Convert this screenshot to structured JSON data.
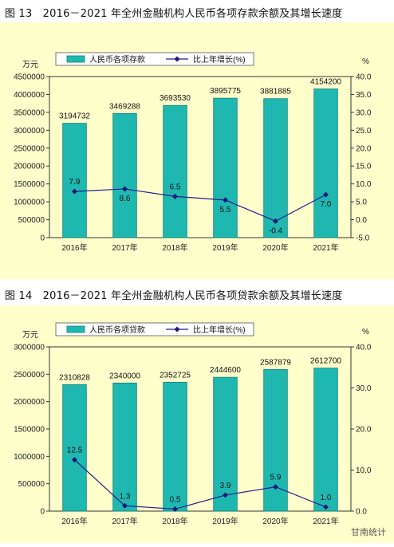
{
  "colors": {
    "background": "#FFFFCC",
    "bar_fill": "#1FB8B0",
    "bar_edge": "#0E7F7A",
    "line": "#1F1F8F",
    "marker": "#1A1A7A"
  },
  "figure1": {
    "caption": "图 13　2016－2021 年全州金融机构人民币各项存款余额及其增长速度"
  },
  "figure2": {
    "caption": "图 14　2016－2021 年全州金融机构人民币各项贷款余额及其增长速度"
  },
  "watermark": "甘南统计",
  "chart_data": [
    {
      "type": "bar",
      "categories": [
        "2016年",
        "2017年",
        "2018年",
        "2019年",
        "2020年",
        "2021年"
      ],
      "series": [
        {
          "name": "人民币各项存款",
          "type": "bar",
          "axis": "left",
          "values": [
            3194732,
            3469288,
            3693530,
            3895775,
            3881885,
            4154200
          ]
        },
        {
          "name": "比上年增长(%)",
          "type": "line",
          "axis": "right",
          "values": [
            7.9,
            8.6,
            6.5,
            5.5,
            -0.4,
            7.0
          ]
        }
      ],
      "bar_labels": [
        "3194732",
        "3469288",
        "3693530",
        "3895775",
        "3881885",
        "4154200"
      ],
      "line_labels": [
        "7.9",
        "8.6",
        "6.5",
        "5.5",
        "-0.4",
        "7.0"
      ],
      "left_unit": "万元",
      "right_unit": "%",
      "left_ylim": [
        0,
        4500000
      ],
      "left_ticks": [
        "0",
        "500000",
        "1000000",
        "1500000",
        "2000000",
        "2500000",
        "3000000",
        "3500000",
        "4000000",
        "4500000"
      ],
      "right_ylim": [
        -5,
        40
      ],
      "right_ticks": [
        "-5.0",
        "0.0",
        "5.0",
        "10.0",
        "15.0",
        "20.0",
        "25.0",
        "30.0",
        "35.0",
        "40.0"
      ],
      "legend_position": "top-left",
      "grid": false
    },
    {
      "type": "bar",
      "categories": [
        "2016年",
        "2017年",
        "2018年",
        "2019年",
        "2020年",
        "2021年"
      ],
      "series": [
        {
          "name": "人民币各项贷款",
          "type": "bar",
          "axis": "left",
          "values": [
            2310828,
            2340000,
            2352725,
            2444600,
            2587879,
            2612700
          ]
        },
        {
          "name": "比上年增长(%)",
          "type": "line",
          "axis": "right",
          "values": [
            12.5,
            1.3,
            0.5,
            3.9,
            5.9,
            1.0
          ]
        }
      ],
      "bar_labels": [
        "2310828",
        "2340000",
        "2352725",
        "2444600",
        "2587879",
        "2612700"
      ],
      "line_labels": [
        "12.5",
        "1.3",
        "0.5",
        "3.9",
        "5.9",
        "1.0"
      ],
      "left_unit": "万元",
      "right_unit": "%",
      "left_ylim": [
        0,
        3000000
      ],
      "left_ticks": [
        "0",
        "500000",
        "1000000",
        "1500000",
        "2000000",
        "2500000",
        "3000000"
      ],
      "right_ylim": [
        0,
        40
      ],
      "right_ticks": [
        "0.0",
        "10.0",
        "20.0",
        "30.0",
        "40.0"
      ],
      "legend_position": "top-left",
      "grid": false
    }
  ]
}
